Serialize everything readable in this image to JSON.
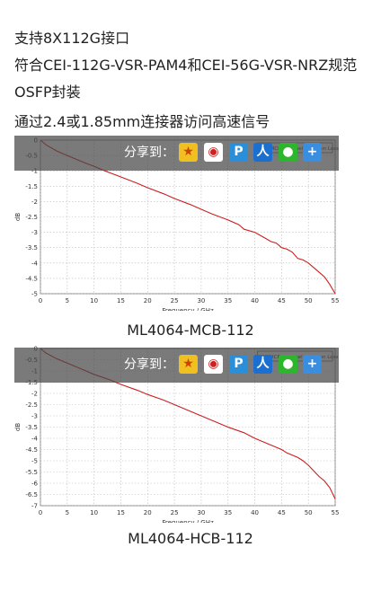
{
  "features": [
    "支持8X112G接口",
    "符合CEI-112G-VSR-PAM4和CEI-56G-VSR-NRZ规范",
    "OSFP封装",
    "通过2.4或1.85mm连接器访问高速信号"
  ],
  "share": {
    "label": "分享到：",
    "icons": [
      "star-icon",
      "weibo-icon",
      "p-icon",
      "renren-icon",
      "wechat-icon",
      "plus-icon"
    ]
  },
  "chart_data": [
    {
      "type": "line",
      "caption": "ML4064-MCB-112",
      "legend": "MCB Channel Insertion Loss",
      "xlabel": "Frequency / GHz",
      "ylabel": "dB",
      "xlim": [
        0,
        55
      ],
      "ylim": [
        -5,
        0
      ],
      "xticks": [
        0,
        5,
        10,
        15,
        20,
        25,
        30,
        35,
        40,
        45,
        50,
        55
      ],
      "yticks": [
        0,
        -0.5,
        -1,
        -1.5,
        -2,
        -2.5,
        -3,
        -3.5,
        -4,
        -4.5,
        -5
      ],
      "color": "#cc1f1f",
      "series": [
        {
          "x": [
            0,
            1,
            3,
            5,
            8,
            10,
            12,
            15,
            18,
            20,
            23,
            25,
            28,
            30,
            32,
            35,
            37,
            38,
            40,
            42,
            43,
            44,
            45,
            46,
            47,
            48,
            49,
            50,
            51,
            52,
            53,
            54,
            55
          ],
          "values": [
            0,
            -0.15,
            -0.35,
            -0.5,
            -0.72,
            -0.85,
            -1.0,
            -1.2,
            -1.4,
            -1.55,
            -1.75,
            -1.9,
            -2.1,
            -2.25,
            -2.4,
            -2.6,
            -2.75,
            -2.9,
            -3.0,
            -3.2,
            -3.3,
            -3.35,
            -3.5,
            -3.55,
            -3.65,
            -3.85,
            -3.9,
            -4.0,
            -4.15,
            -4.3,
            -4.45,
            -4.7,
            -5.0
          ]
        }
      ]
    },
    {
      "type": "line",
      "caption": "ML4064-HCB-112",
      "legend": "HCB Channel Insertion Loss",
      "xlabel": "Frequency / GHz",
      "ylabel": "dB",
      "xlim": [
        0,
        55
      ],
      "ylim": [
        -7,
        0
      ],
      "xticks": [
        0,
        5,
        10,
        15,
        20,
        25,
        30,
        35,
        40,
        45,
        50,
        55
      ],
      "yticks": [
        0,
        -0.5,
        -1,
        -1.5,
        -2,
        -2.5,
        -3,
        -3.5,
        -4,
        -4.5,
        -5,
        -5.5,
        -6,
        -6.5,
        -7
      ],
      "color": "#cc1f1f",
      "series": [
        {
          "x": [
            0,
            1,
            3,
            5,
            8,
            10,
            13,
            15,
            18,
            20,
            23,
            25,
            28,
            30,
            33,
            35,
            38,
            40,
            42,
            44,
            45,
            46,
            47,
            48,
            49,
            50,
            51,
            52,
            53,
            54,
            55
          ],
          "values": [
            0,
            -0.2,
            -0.45,
            -0.65,
            -0.95,
            -1.15,
            -1.4,
            -1.6,
            -1.85,
            -2.05,
            -2.3,
            -2.5,
            -2.8,
            -3.0,
            -3.3,
            -3.5,
            -3.75,
            -4.0,
            -4.2,
            -4.4,
            -4.5,
            -4.65,
            -4.75,
            -4.85,
            -5.0,
            -5.2,
            -5.45,
            -5.7,
            -5.9,
            -6.2,
            -6.7
          ]
        }
      ]
    }
  ]
}
